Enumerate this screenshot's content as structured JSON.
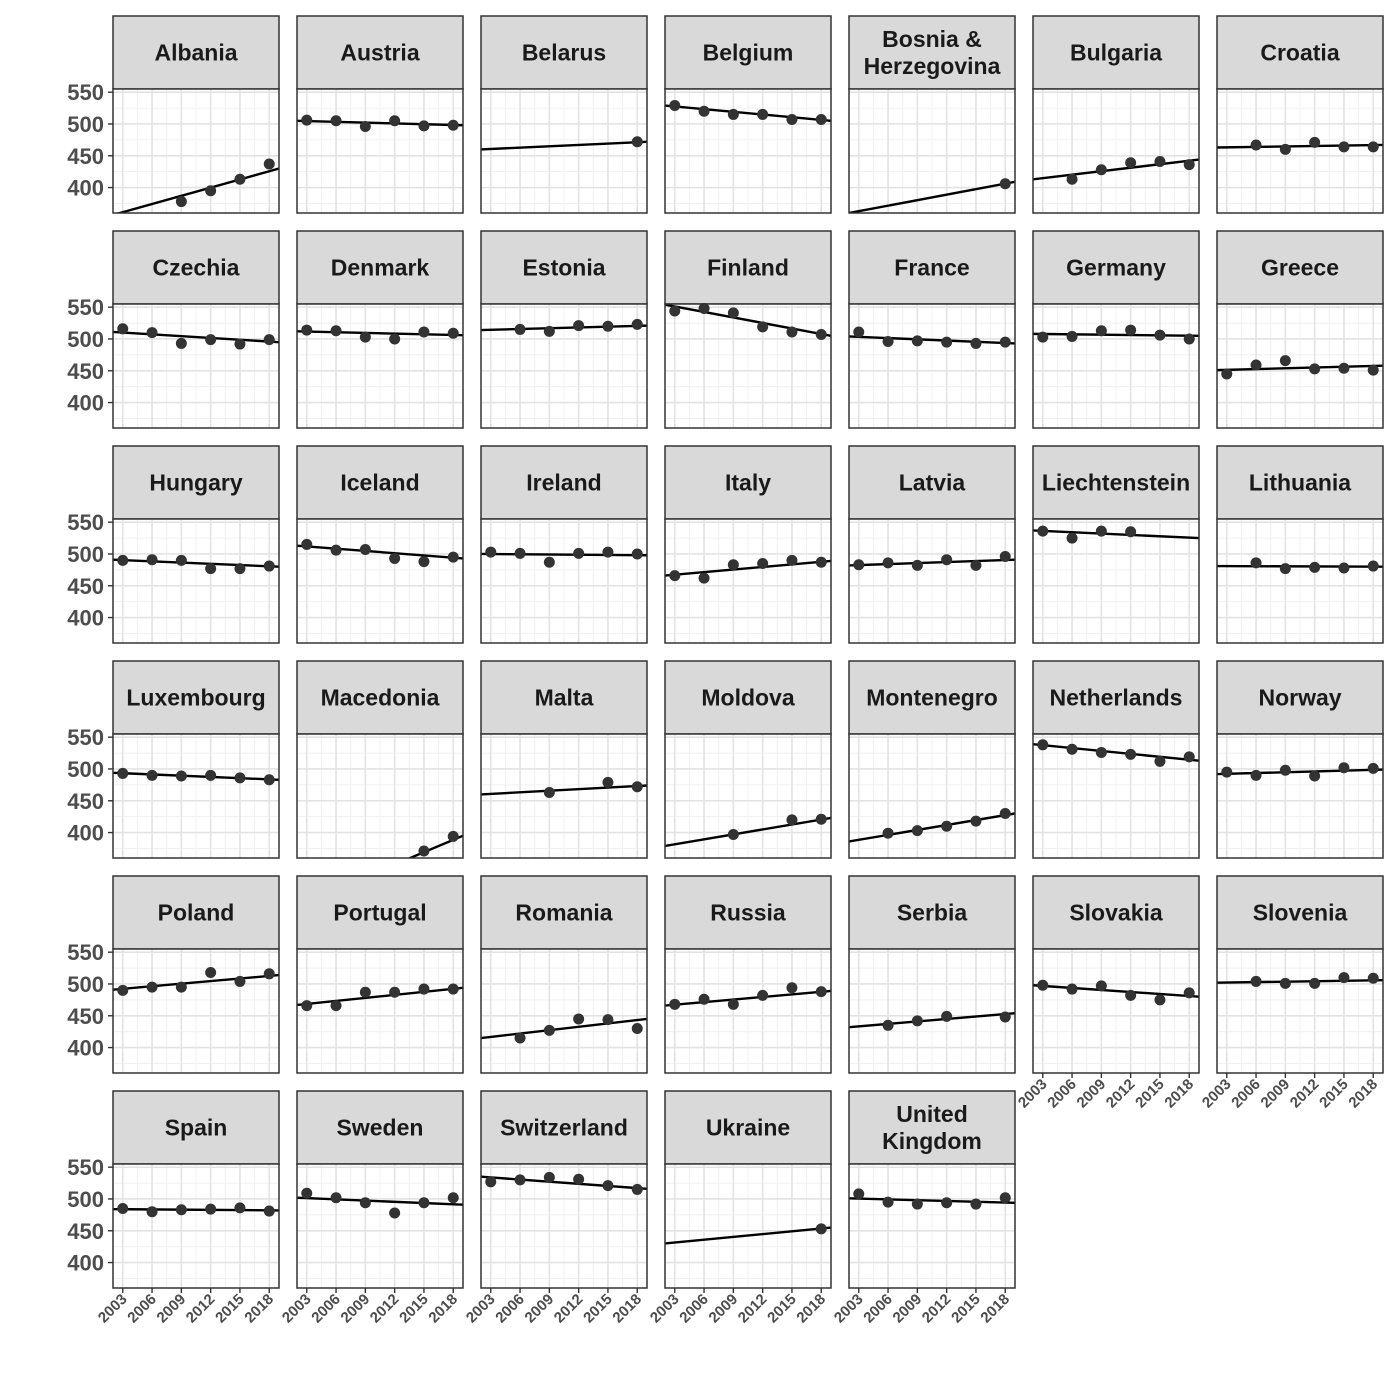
{
  "chart_data": {
    "type": "scatter",
    "layout": "facet_wrap",
    "xlim": [
      2002,
      2019
    ],
    "ylim": [
      360,
      555
    ],
    "y_ticks": [
      400,
      450,
      500,
      550
    ],
    "x_ticks": [
      2003,
      2006,
      2009,
      2012,
      2015,
      2018
    ],
    "y_tick_labels": [
      "400",
      "450",
      "500",
      "550"
    ],
    "x_tick_labels": [
      "2003",
      "2006",
      "2009",
      "2012",
      "2015",
      "2018"
    ],
    "xlabel": "",
    "ylabel": "",
    "grid": true,
    "panels": [
      {
        "name": "Albania",
        "trend": [
          2002,
          357,
          2019,
          430
        ],
        "x": [
          2009,
          2012,
          2015,
          2018
        ],
        "y": [
          378,
          395,
          413,
          437
        ]
      },
      {
        "name": "Austria",
        "trend": [
          2002,
          505,
          2019,
          498
        ],
        "x": [
          2003,
          2006,
          2009,
          2012,
          2015,
          2018
        ],
        "y": [
          506,
          505,
          496,
          505,
          497,
          498
        ]
      },
      {
        "name": "Belarus",
        "trend": [
          2002,
          460,
          2019,
          472
        ],
        "x": [
          2018
        ],
        "y": [
          472
        ]
      },
      {
        "name": "Belgium",
        "trend": [
          2002,
          529,
          2019,
          505
        ],
        "x": [
          2003,
          2006,
          2009,
          2012,
          2015,
          2018
        ],
        "y": [
          529,
          520,
          515,
          515,
          507,
          507
        ]
      },
      {
        "name": "Bosnia & Herzegovina",
        "trend": [
          2002,
          360,
          2019,
          409
        ],
        "x": [
          2018
        ],
        "y": [
          406
        ]
      },
      {
        "name": "Bulgaria",
        "trend": [
          2002,
          413,
          2019,
          444
        ],
        "x": [
          2006,
          2009,
          2012,
          2015,
          2018
        ],
        "y": [
          413,
          428,
          439,
          441,
          436
        ]
      },
      {
        "name": "Croatia",
        "trend": [
          2002,
          463,
          2019,
          467
        ],
        "x": [
          2006,
          2009,
          2012,
          2015,
          2018
        ],
        "y": [
          467,
          460,
          471,
          464,
          464
        ]
      },
      {
        "name": "Czechia",
        "trend": [
          2002,
          511,
          2019,
          495
        ],
        "x": [
          2003,
          2006,
          2009,
          2012,
          2015,
          2018
        ],
        "y": [
          516,
          510,
          493,
          499,
          492,
          499
        ]
      },
      {
        "name": "Denmark",
        "trend": [
          2002,
          512,
          2019,
          506
        ],
        "x": [
          2003,
          2006,
          2009,
          2012,
          2015,
          2018
        ],
        "y": [
          514,
          513,
          503,
          500,
          511,
          509
        ]
      },
      {
        "name": "Estonia",
        "trend": [
          2002,
          514,
          2019,
          521
        ],
        "x": [
          2006,
          2009,
          2012,
          2015,
          2018
        ],
        "y": [
          515,
          512,
          521,
          520,
          523
        ]
      },
      {
        "name": "Finland",
        "trend": [
          2002,
          554,
          2019,
          505
        ],
        "x": [
          2003,
          2006,
          2009,
          2012,
          2015,
          2018
        ],
        "y": [
          544,
          548,
          541,
          519,
          511,
          507
        ]
      },
      {
        "name": "France",
        "trend": [
          2002,
          504,
          2019,
          493
        ],
        "x": [
          2003,
          2006,
          2009,
          2012,
          2015,
          2018
        ],
        "y": [
          511,
          496,
          497,
          495,
          493,
          495
        ]
      },
      {
        "name": "Germany",
        "trend": [
          2002,
          508,
          2019,
          505
        ],
        "x": [
          2003,
          2006,
          2009,
          2012,
          2015,
          2018
        ],
        "y": [
          503,
          504,
          513,
          514,
          506,
          500
        ]
      },
      {
        "name": "Greece",
        "trend": [
          2002,
          451,
          2019,
          458
        ],
        "x": [
          2003,
          2006,
          2009,
          2012,
          2015,
          2018
        ],
        "y": [
          445,
          459,
          466,
          453,
          454,
          451
        ]
      },
      {
        "name": "Hungary",
        "trend": [
          2002,
          491,
          2019,
          480
        ],
        "x": [
          2003,
          2006,
          2009,
          2012,
          2015,
          2018
        ],
        "y": [
          490,
          491,
          490,
          477,
          477,
          481
        ]
      },
      {
        "name": "Iceland",
        "trend": [
          2002,
          513,
          2019,
          493
        ],
        "x": [
          2003,
          2006,
          2009,
          2012,
          2015,
          2018
        ],
        "y": [
          515,
          506,
          507,
          493,
          488,
          495
        ]
      },
      {
        "name": "Ireland",
        "trend": [
          2002,
          500,
          2019,
          498
        ],
        "x": [
          2003,
          2006,
          2009,
          2012,
          2015,
          2018
        ],
        "y": [
          503,
          501,
          487,
          501,
          503,
          500
        ]
      },
      {
        "name": "Italy",
        "trend": [
          2002,
          466,
          2019,
          489
        ],
        "x": [
          2003,
          2006,
          2009,
          2012,
          2015,
          2018
        ],
        "y": [
          466,
          462,
          483,
          485,
          490,
          487
        ]
      },
      {
        "name": "Latvia",
        "trend": [
          2002,
          482,
          2019,
          491
        ],
        "x": [
          2003,
          2006,
          2009,
          2012,
          2015,
          2018
        ],
        "y": [
          483,
          486,
          482,
          491,
          482,
          496
        ]
      },
      {
        "name": "Liechtenstein",
        "trend": [
          2002,
          537,
          2019,
          525
        ],
        "x": [
          2003,
          2006,
          2009,
          2012
        ],
        "y": [
          536,
          525,
          536,
          535
        ]
      },
      {
        "name": "Lithuania",
        "trend": [
          2002,
          481,
          2019,
          480
        ],
        "x": [
          2006,
          2009,
          2012,
          2015,
          2018
        ],
        "y": [
          486,
          477,
          479,
          478,
          481
        ]
      },
      {
        "name": "Luxembourg",
        "trend": [
          2002,
          494,
          2019,
          483
        ],
        "x": [
          2003,
          2006,
          2009,
          2012,
          2015,
          2018
        ],
        "y": [
          493,
          490,
          489,
          490,
          486,
          483
        ]
      },
      {
        "name": "Macedonia",
        "trend": [
          2002,
          285,
          2019,
          395
        ],
        "x": [
          2015,
          2018
        ],
        "y": [
          371,
          394
        ]
      },
      {
        "name": "Malta",
        "trend": [
          2002,
          460,
          2019,
          474
        ],
        "x": [
          2009,
          2015,
          2018
        ],
        "y": [
          463,
          479,
          472
        ]
      },
      {
        "name": "Moldova",
        "trend": [
          2002,
          379,
          2019,
          423
        ],
        "x": [
          2009,
          2015,
          2018
        ],
        "y": [
          397,
          420,
          421
        ]
      },
      {
        "name": "Montenegro",
        "trend": [
          2002,
          386,
          2019,
          430
        ],
        "x": [
          2006,
          2009,
          2012,
          2015,
          2018
        ],
        "y": [
          399,
          403,
          410,
          418,
          430
        ]
      },
      {
        "name": "Netherlands",
        "trend": [
          2002,
          539,
          2019,
          513
        ],
        "x": [
          2003,
          2006,
          2009,
          2012,
          2015,
          2018
        ],
        "y": [
          538,
          531,
          526,
          523,
          512,
          519
        ]
      },
      {
        "name": "Norway",
        "trend": [
          2002,
          492,
          2019,
          499
        ],
        "x": [
          2003,
          2006,
          2009,
          2012,
          2015,
          2018
        ],
        "y": [
          495,
          490,
          498,
          489,
          502,
          501
        ]
      },
      {
        "name": "Poland",
        "trend": [
          2002,
          491,
          2019,
          514
        ],
        "x": [
          2003,
          2006,
          2009,
          2012,
          2015,
          2018
        ],
        "y": [
          490,
          495,
          495,
          518,
          504,
          516
        ]
      },
      {
        "name": "Portugal",
        "trend": [
          2002,
          467,
          2019,
          494
        ],
        "x": [
          2003,
          2006,
          2009,
          2012,
          2015,
          2018
        ],
        "y": [
          466,
          466,
          487,
          487,
          492,
          492
        ]
      },
      {
        "name": "Romania",
        "trend": [
          2002,
          415,
          2019,
          445
        ],
        "x": [
          2006,
          2009,
          2012,
          2015,
          2018
        ],
        "y": [
          415,
          427,
          445,
          444,
          430
        ]
      },
      {
        "name": "Russia",
        "trend": [
          2002,
          466,
          2019,
          489
        ],
        "x": [
          2003,
          2006,
          2009,
          2012,
          2015,
          2018
        ],
        "y": [
          468,
          476,
          468,
          482,
          494,
          488
        ]
      },
      {
        "name": "Serbia",
        "trend": [
          2002,
          432,
          2019,
          454
        ],
        "x": [
          2006,
          2009,
          2012,
          2018
        ],
        "y": [
          435,
          442,
          449,
          448
        ]
      },
      {
        "name": "Slovakia",
        "trend": [
          2002,
          498,
          2019,
          480
        ],
        "x": [
          2003,
          2006,
          2009,
          2012,
          2015,
          2018
        ],
        "y": [
          498,
          492,
          497,
          482,
          475,
          486
        ]
      },
      {
        "name": "Slovenia",
        "trend": [
          2002,
          502,
          2019,
          506
        ],
        "x": [
          2006,
          2009,
          2012,
          2015,
          2018
        ],
        "y": [
          504,
          501,
          501,
          510,
          509
        ]
      },
      {
        "name": "Spain",
        "trend": [
          2002,
          484,
          2019,
          482
        ],
        "x": [
          2003,
          2006,
          2009,
          2012,
          2015,
          2018
        ],
        "y": [
          485,
          480,
          483,
          484,
          486,
          481
        ]
      },
      {
        "name": "Sweden",
        "trend": [
          2002,
          502,
          2019,
          491
        ],
        "x": [
          2003,
          2006,
          2009,
          2012,
          2015,
          2018
        ],
        "y": [
          509,
          502,
          494,
          478,
          494,
          502
        ]
      },
      {
        "name": "Switzerland",
        "trend": [
          2002,
          535,
          2019,
          516
        ],
        "x": [
          2003,
          2006,
          2009,
          2012,
          2015,
          2018
        ],
        "y": [
          527,
          530,
          534,
          531,
          521,
          515
        ]
      },
      {
        "name": "Ukraine",
        "trend": [
          2002,
          430,
          2019,
          455
        ],
        "x": [
          2018
        ],
        "y": [
          453
        ]
      },
      {
        "name": "United Kingdom",
        "trend": [
          2002,
          501,
          2019,
          494
        ],
        "x": [
          2003,
          2006,
          2009,
          2012,
          2015,
          2018
        ],
        "y": [
          508,
          495,
          492,
          494,
          492,
          502
        ]
      }
    ]
  }
}
